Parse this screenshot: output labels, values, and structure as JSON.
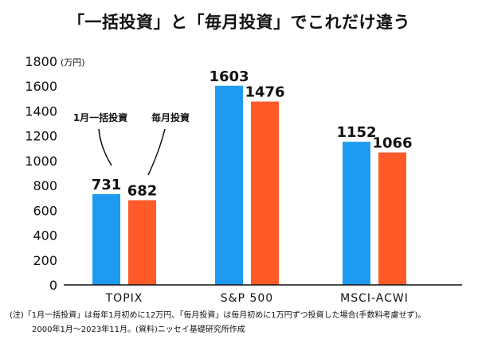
{
  "chart_data": {
    "type": "bar",
    "title": "「一括投資」と「毎月投資」でこれだけ違う",
    "categories": [
      "TOPIX",
      "S&P 500",
      "MSCI-ACWI"
    ],
    "series": [
      {
        "name": "1月一括投資",
        "color": "#1e9bf0",
        "values": [
          731,
          1603,
          1152
        ]
      },
      {
        "name": "毎月投資",
        "color": "#ff5a28",
        "values": [
          682,
          1476,
          1066
        ]
      }
    ],
    "value_labels": [
      [
        "731",
        "1603",
        "1152"
      ],
      [
        "682",
        "1476",
        "1066"
      ]
    ],
    "yticks": [
      0,
      200,
      400,
      600,
      800,
      1000,
      1200,
      1400,
      1600,
      1800
    ],
    "ylim": [
      0,
      1800
    ],
    "yunit": "(万円)",
    "xlabel": "",
    "ylabel": ""
  },
  "notes": {
    "line1": "(注)「1月一括投資」は毎年1月初めに12万円、「毎月投資」は毎月初めに1万円ずつ投資した場合(手数料考慮せず)。",
    "line2": "2000年1月～2023年11月。(資料)ニッセイ基礎研究所作成"
  }
}
